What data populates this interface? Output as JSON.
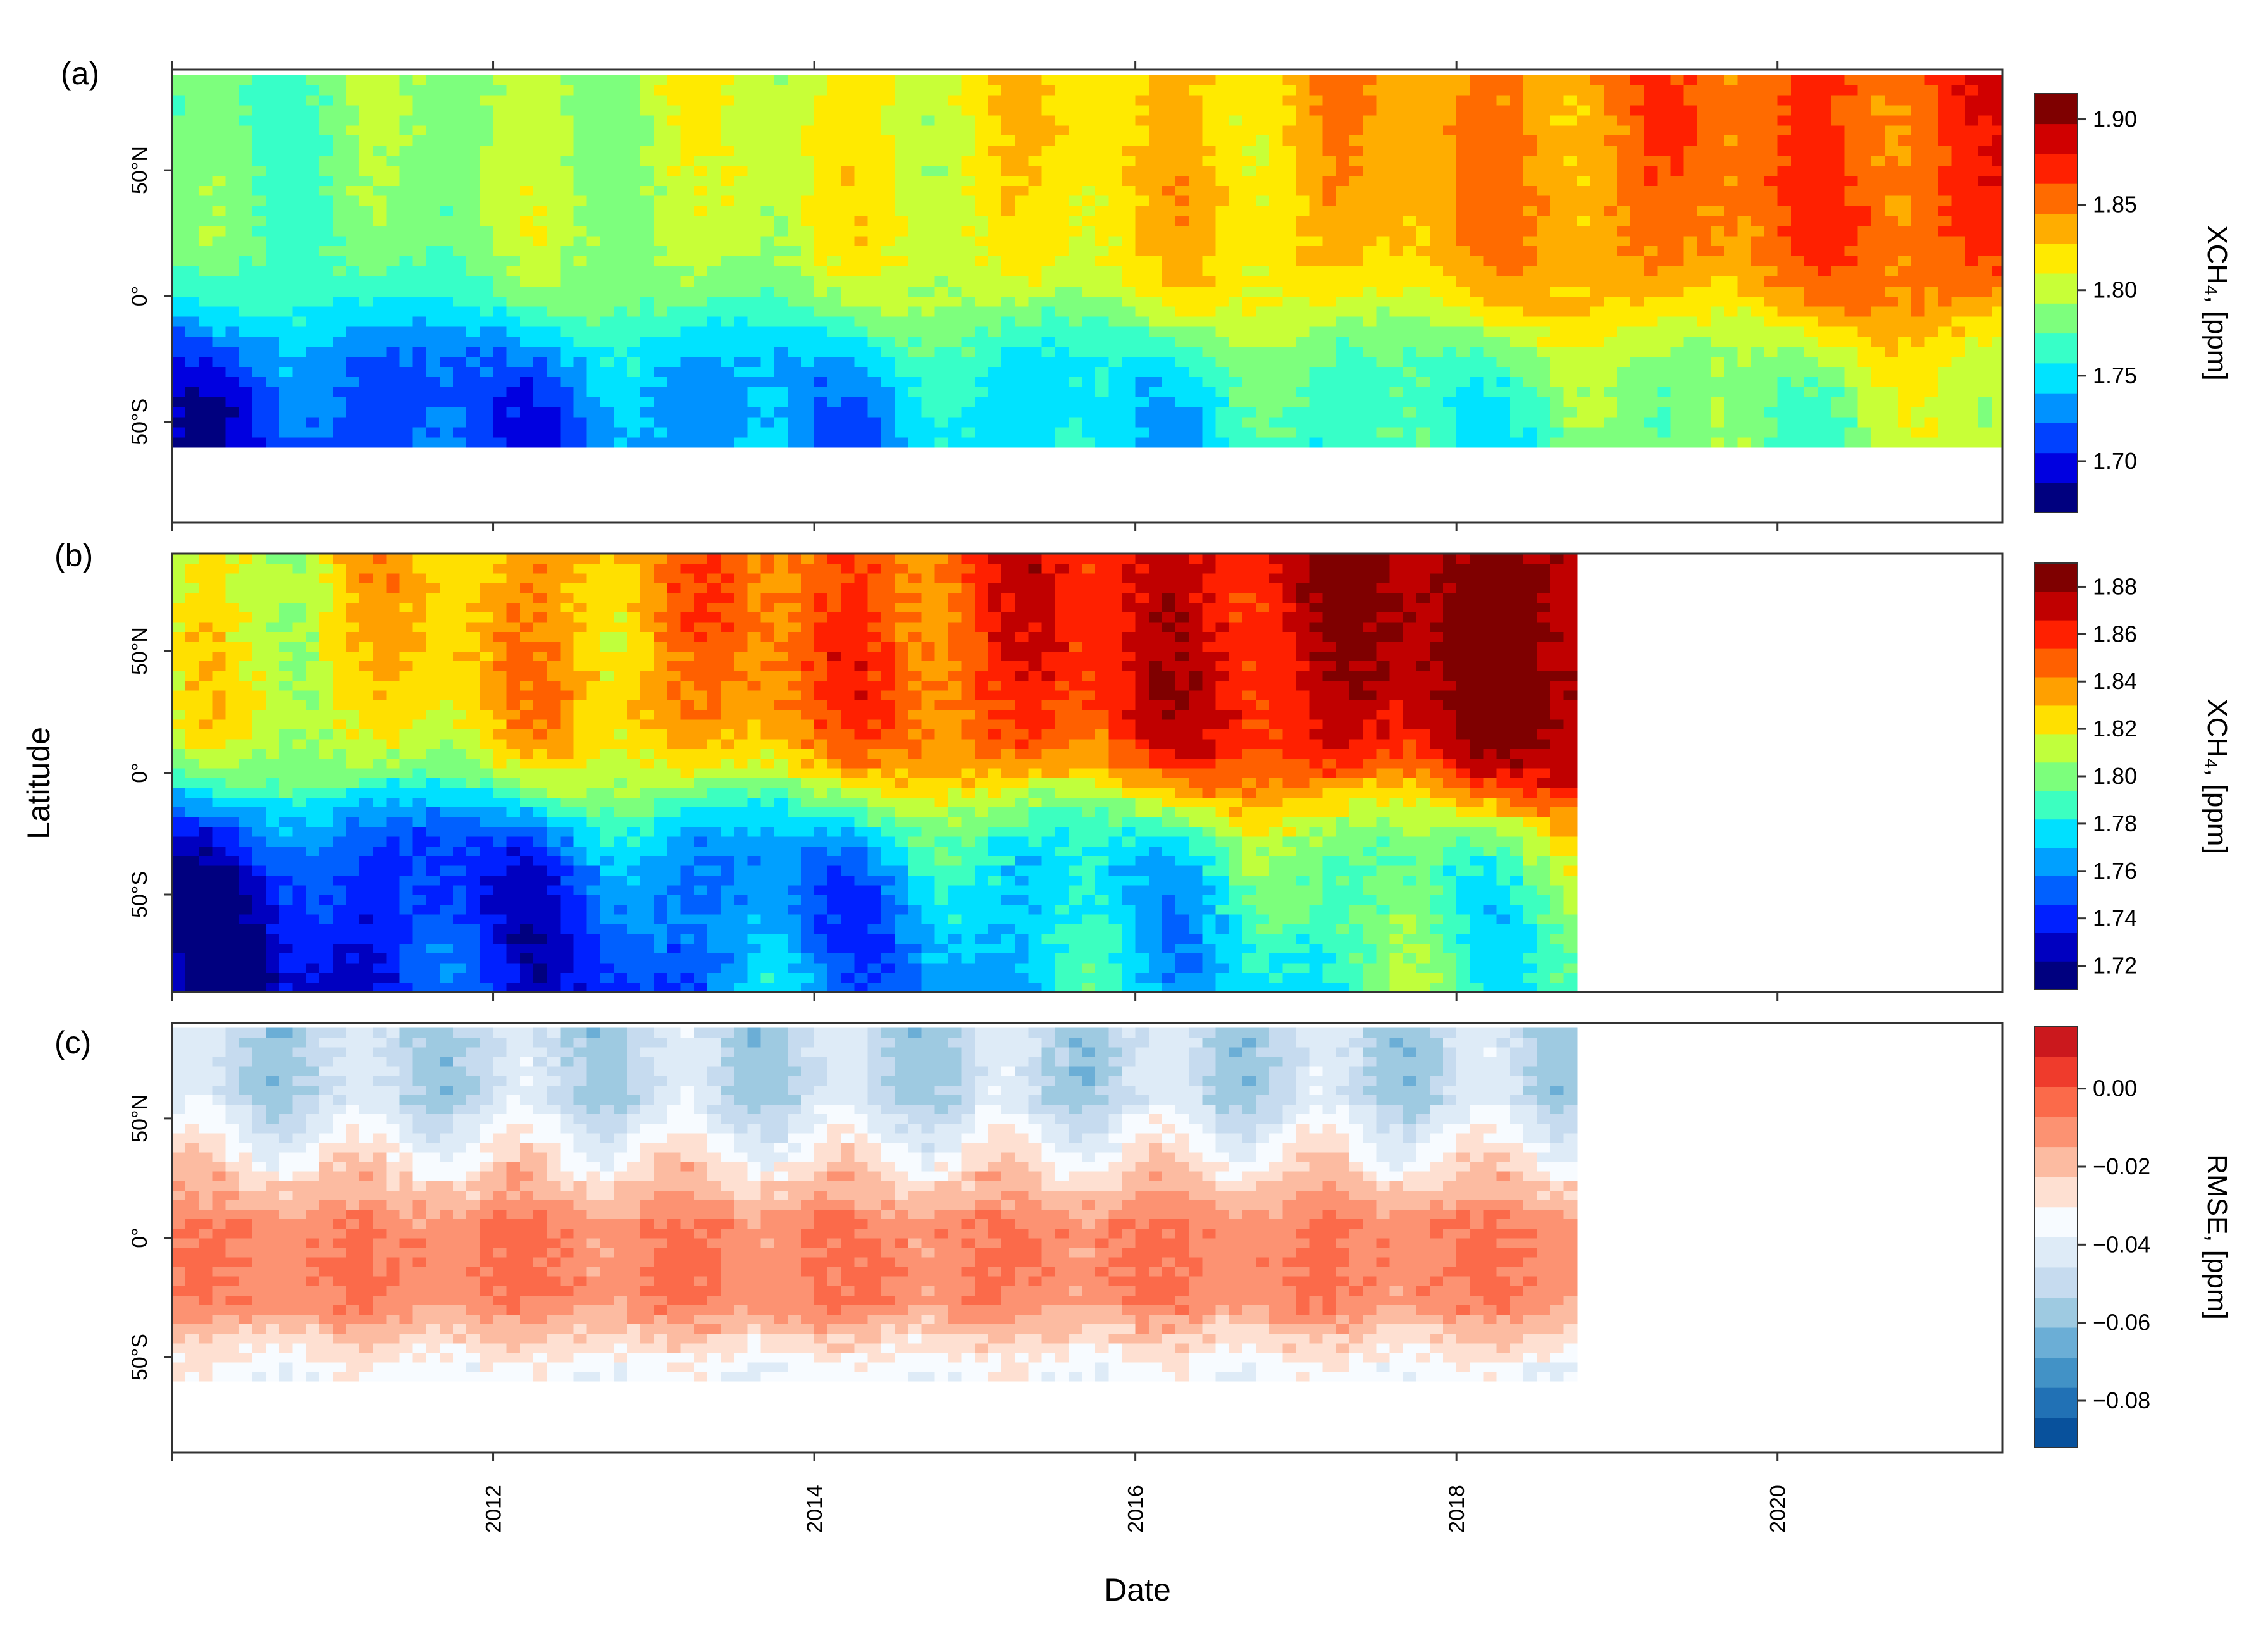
{
  "chart_data": [
    {
      "panel": "(a)",
      "type": "heatmap",
      "x_range": [
        2010.0,
        2021.4
      ],
      "y_range": [
        -90,
        90
      ],
      "data_lat_range": [
        -60,
        88
      ],
      "data_x_end": 2021.4,
      "ytick_labels": [
        "50°N",
        "0°",
        "50°S"
      ],
      "ytick_values": [
        50,
        0,
        -50
      ],
      "colorbar": {
        "label": "XCH₄, [ppm]",
        "min": 1.67,
        "max": 1.915,
        "ticks": [
          "1.90",
          "1.85",
          "1.80",
          "1.75",
          "1.70"
        ],
        "tick_values": [
          1.9,
          1.85,
          1.8,
          1.75,
          1.7
        ],
        "palette": [
          "#00007f",
          "#0000e0",
          "#0041ff",
          "#0092ff",
          "#00e3ff",
          "#37ffc8",
          "#7dff7d",
          "#c8ff37",
          "#ffea00",
          "#ffad00",
          "#ff6b00",
          "#ff2000",
          "#d00000",
          "#7f0000"
        ]
      },
      "field_model": {
        "description": "northern hemisphere greater than southern, rising trend with seasonal cycle",
        "start_south": 1.7,
        "start_north": 1.775,
        "trend_per_year": 0.0083,
        "seasonal_amp": 0.012
      }
    },
    {
      "panel": "(b)",
      "type": "heatmap",
      "ylabel": "Latitude",
      "x_range": [
        2010.0,
        2021.4
      ],
      "y_range": [
        -90,
        90
      ],
      "data_lat_range": [
        -90,
        90
      ],
      "data_x_end": 2018.75,
      "ytick_labels": [
        "50°N",
        "0°",
        "50°S"
      ],
      "ytick_values": [
        50,
        0,
        -50
      ],
      "colorbar": {
        "label": "XCH₄, [ppm]",
        "min": 1.71,
        "max": 1.89,
        "ticks": [
          "1.88",
          "1.86",
          "1.84",
          "1.82",
          "1.80",
          "1.78",
          "1.76",
          "1.74",
          "1.72"
        ],
        "tick_values": [
          1.88,
          1.86,
          1.84,
          1.82,
          1.8,
          1.78,
          1.76,
          1.74,
          1.72
        ],
        "palette": [
          "#00007f",
          "#0000c0",
          "#0020ff",
          "#0060ff",
          "#00a0ff",
          "#00e0ff",
          "#3cffc0",
          "#7cff7c",
          "#c0ff3c",
          "#ffe000",
          "#ffa000",
          "#ff6000",
          "#ff2000",
          "#c00000",
          "#7f0000"
        ]
      },
      "field_model": {
        "description": "northern hemisphere greater than southern, rising trend with seasonal cycle",
        "start_south": 1.725,
        "start_north": 1.815,
        "trend_per_year": 0.0083,
        "seasonal_amp": 0.01
      }
    },
    {
      "panel": "(c)",
      "type": "heatmap",
      "xlabel": "Date",
      "x_range": [
        2010.0,
        2021.4
      ],
      "y_range": [
        -90,
        90
      ],
      "data_lat_range": [
        -60,
        88
      ],
      "data_x_end": 2018.75,
      "xtick_labels": [
        "2012",
        "2014",
        "2016",
        "2018",
        "2020"
      ],
      "xtick_values": [
        2012,
        2014,
        2016,
        2018,
        2020
      ],
      "ytick_labels": [
        "50°N",
        "0°",
        "50°S"
      ],
      "ytick_values": [
        50,
        0,
        -50
      ],
      "colorbar": {
        "label": "RMSE, [ppm]",
        "min": -0.092,
        "max": 0.016,
        "ticks": [
          "0.00",
          "−0.02",
          "−0.04",
          "−0.06",
          "−0.08"
        ],
        "tick_values": [
          0.0,
          -0.02,
          -0.04,
          -0.06,
          -0.08
        ],
        "palette": [
          "#08519c",
          "#2171b5",
          "#4292c6",
          "#6baed6",
          "#9ecae1",
          "#c6dbef",
          "#deebf7",
          "#f7fbff",
          "#fee0d2",
          "#fcbba1",
          "#fc9272",
          "#fb6a4a",
          "#ef3b2c",
          "#cb181d"
        ]
      },
      "field_model": {
        "description": "about -0.04 at the high latitudes, about -0.01 near the equator",
        "equator_value": -0.008,
        "north_value": -0.05,
        "south_value": -0.035
      }
    }
  ]
}
